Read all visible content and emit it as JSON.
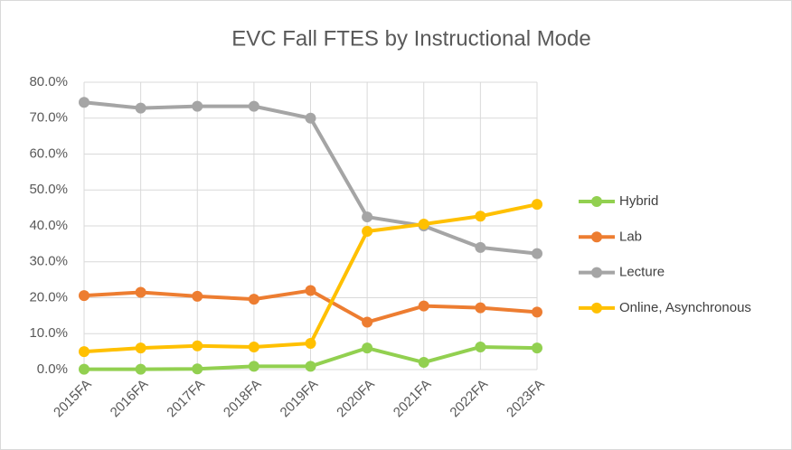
{
  "chart_data": {
    "type": "line",
    "title": "EVC Fall FTES by Instructional Mode",
    "categories": [
      "2015FA",
      "2016FA",
      "2017FA",
      "2018FA",
      "2019FA",
      "2020FA",
      "2021FA",
      "2022FA",
      "2023FA"
    ],
    "series": [
      {
        "name": "Hybrid",
        "color": "#92d050",
        "values": [
          0.1,
          0.1,
          0.2,
          0.9,
          0.9,
          6.0,
          2.0,
          6.3,
          6.0
        ]
      },
      {
        "name": "Lab",
        "color": "#ed7d31",
        "values": [
          20.6,
          21.5,
          20.4,
          19.6,
          22.0,
          13.2,
          17.7,
          17.2,
          16.0
        ]
      },
      {
        "name": "Lecture",
        "color": "#a5a5a5",
        "values": [
          74.4,
          72.8,
          73.3,
          73.3,
          70.0,
          42.5,
          40.0,
          34.0,
          32.3
        ]
      },
      {
        "name": "Online, Asynchronous",
        "color": "#ffc000",
        "values": [
          5.0,
          6.0,
          6.6,
          6.3,
          7.3,
          38.5,
          40.5,
          42.7,
          46.0
        ]
      }
    ],
    "ylim": [
      0,
      80
    ],
    "yticks": [
      {
        "value": 0,
        "label": "0.0%"
      },
      {
        "value": 10,
        "label": "10.0%"
      },
      {
        "value": 20,
        "label": "20.0%"
      },
      {
        "value": 30,
        "label": "30.0%"
      },
      {
        "value": 40,
        "label": "40.0%"
      },
      {
        "value": 50,
        "label": "50.0%"
      },
      {
        "value": 60,
        "label": "60.0%"
      },
      {
        "value": 70,
        "label": "70.0%"
      },
      {
        "value": 80,
        "label": "80.0%"
      }
    ],
    "grid": true,
    "legend": "right"
  }
}
